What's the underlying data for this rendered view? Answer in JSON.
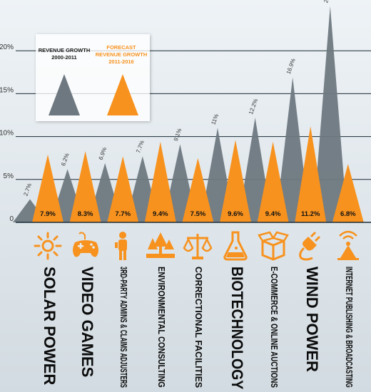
{
  "colors": {
    "historical": "#6e7880",
    "forecast": "#f7921e",
    "icon": "#f7921e",
    "grid": "#1b2b36"
  },
  "legend": {
    "historical_line1": "REVENUE GROWTH",
    "historical_line2": "2000-2011",
    "forecast_line1": "FORECAST",
    "forecast_line2": "REVENUE GROWTH",
    "forecast_line3": "2011-2016"
  },
  "chart_data": {
    "type": "area",
    "y_ticks": [
      "0",
      "5%",
      "10%",
      "15%",
      "20%"
    ],
    "ylim": [
      0,
      25.2
    ],
    "categories": [
      "SOLAR POWER",
      "VIDEO GAMES",
      "3RD-PARTY ADMINS & CLAIMS ADJUSTERS",
      "ENVIRONMENTAL CONSULTING",
      "CORRECTIONAL FACILITIES",
      "BIOTECHNOLOGY",
      "E-COMMERCE & ONLINE AUCTIONS",
      "WIND POWER",
      "INTERNET PUBLISHING & BROADCASTING"
    ],
    "series": [
      {
        "name": "REVENUE GROWTH 2000-2011",
        "values": [
          2.7,
          6.2,
          6.9,
          7.7,
          9.1,
          11,
          12.2,
          16.9,
          25.2
        ],
        "labels": [
          "2.7%",
          "6.2%",
          "6.9%",
          "7.7%",
          "9.1%",
          "11%",
          "12.2%",
          "16.9%",
          "25.2%"
        ]
      },
      {
        "name": "FORECAST REVENUE GROWTH 2011-2016",
        "values": [
          7.9,
          8.3,
          7.7,
          9.4,
          7.5,
          9.6,
          9.4,
          11.2,
          6.8
        ],
        "labels": [
          "7.9%",
          "8.3%",
          "7.7%",
          "9.4%",
          "7.5%",
          "9.6%",
          "9.4%",
          "11.2%",
          "6.8%"
        ]
      }
    ]
  },
  "icons": [
    "sun-icon",
    "gamepad-icon",
    "person-icon",
    "trees-icon",
    "scales-icon",
    "flask-icon",
    "box-icon",
    "plug-icon",
    "antenna-icon"
  ],
  "label_sizes": [
    "l",
    "l",
    "s",
    "s",
    "s",
    "l",
    "s",
    "l",
    "s"
  ]
}
